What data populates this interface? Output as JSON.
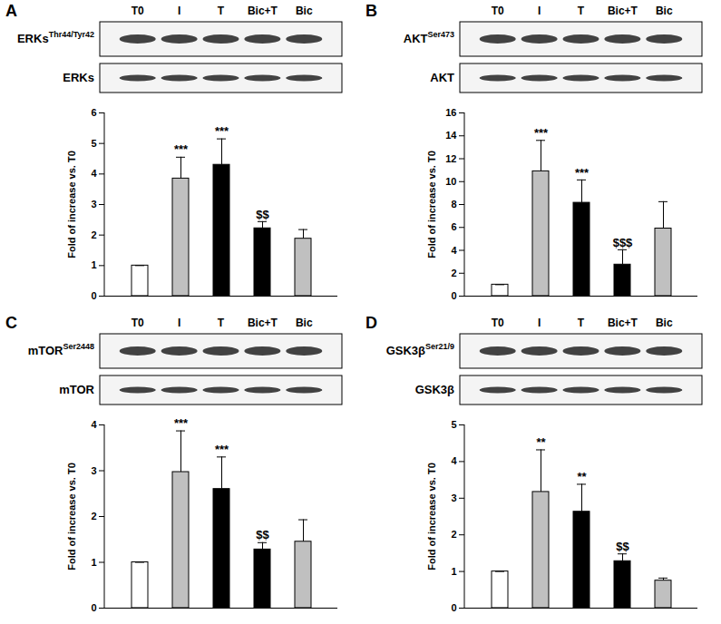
{
  "chart_data": [
    {
      "panel": "A",
      "type": "bar",
      "categories": [
        "T0",
        "I",
        "T",
        "Bic+T",
        "Bic"
      ],
      "blots": [
        {
          "name": "ERKs",
          "site": "Thr44/Tyr42"
        },
        {
          "name": "ERKs"
        }
      ],
      "y_label": "Fold of increase vs. T0",
      "values": [
        1,
        3.85,
        4.3,
        2.22,
        1.88
      ],
      "errors": [
        0,
        0.7,
        0.85,
        0.22,
        0.3
      ],
      "annotations": [
        null,
        "***",
        "***",
        "$$",
        null
      ],
      "colors": [
        "#ffffff",
        "#c0c0c0",
        "#000000",
        "#000000",
        "#c0c0c0"
      ],
      "ylim": [
        0,
        6
      ],
      "yticks": [
        0,
        1,
        2,
        3,
        4,
        5,
        6
      ]
    },
    {
      "panel": "B",
      "type": "bar",
      "categories": [
        "T0",
        "I",
        "T",
        "Bic+T",
        "Bic"
      ],
      "blots": [
        {
          "name": "AKT",
          "site": "Ser473"
        },
        {
          "name": "AKT"
        }
      ],
      "y_label": "Fold of increase vs. T0",
      "values": [
        1,
        10.9,
        8.15,
        2.75,
        5.9
      ],
      "errors": [
        0,
        2.7,
        2.0,
        1.3,
        2.35
      ],
      "annotations": [
        null,
        "***",
        "***",
        "$$$",
        null
      ],
      "colors": [
        "#ffffff",
        "#c0c0c0",
        "#000000",
        "#000000",
        "#c0c0c0"
      ],
      "ylim": [
        0,
        16
      ],
      "yticks": [
        0,
        2,
        4,
        6,
        8,
        10,
        12,
        14,
        16
      ]
    },
    {
      "panel": "C",
      "type": "bar",
      "categories": [
        "T0",
        "I",
        "T",
        "Bic+T",
        "Bic"
      ],
      "blots": [
        {
          "name": "mTOR",
          "site": "Ser2448"
        },
        {
          "name": "mTOR"
        }
      ],
      "y_label": "Fold of increase vs. T0",
      "values": [
        1,
        2.97,
        2.6,
        1.28,
        1.45
      ],
      "errors": [
        0,
        0.9,
        0.7,
        0.15,
        0.48
      ],
      "annotations": [
        null,
        "***",
        "***",
        "$$",
        null
      ],
      "colors": [
        "#ffffff",
        "#c0c0c0",
        "#000000",
        "#000000",
        "#c0c0c0"
      ],
      "ylim": [
        0,
        4
      ],
      "yticks": [
        0,
        1,
        2,
        3,
        4
      ]
    },
    {
      "panel": "D",
      "type": "bar",
      "categories": [
        "T0",
        "I",
        "T",
        "Bic+T",
        "Bic"
      ],
      "blots": [
        {
          "name": "GSK3β",
          "site": "Ser21/9"
        },
        {
          "name": "GSK3β"
        }
      ],
      "y_label": "Fold of increase vs. T0",
      "values": [
        1,
        3.17,
        2.63,
        1.28,
        0.75
      ],
      "errors": [
        0,
        1.15,
        0.75,
        0.2,
        0.07
      ],
      "annotations": [
        null,
        "**",
        "**",
        "$$",
        null
      ],
      "colors": [
        "#ffffff",
        "#c0c0c0",
        "#000000",
        "#000000",
        "#c0c0c0"
      ],
      "ylim": [
        0,
        5
      ],
      "yticks": [
        0,
        1,
        2,
        3,
        4,
        5
      ]
    }
  ]
}
